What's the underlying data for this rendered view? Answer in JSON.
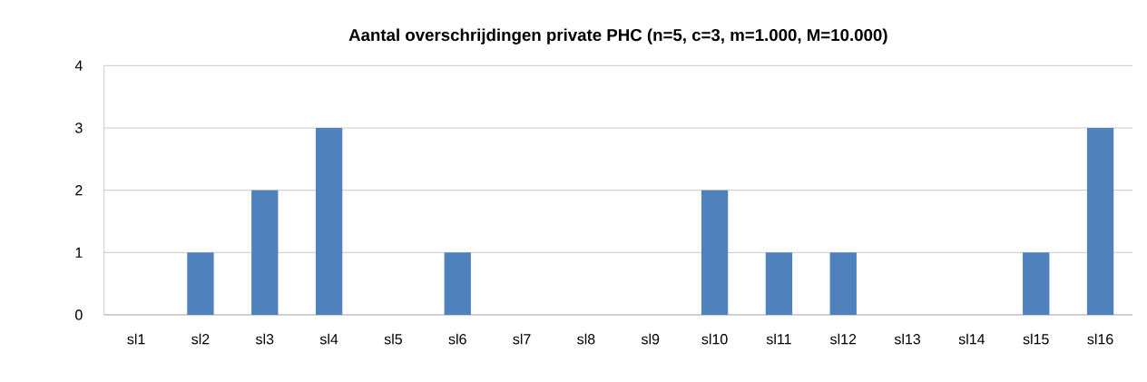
{
  "chart_data": {
    "type": "bar",
    "title": "Aantal overschrijdingen private PHC (n=5, c=3, m=1.000, M=10.000)",
    "categories": [
      "sl1",
      "sl2",
      "sl3",
      "sl4",
      "sl5",
      "sl6",
      "sl7",
      "sl8",
      "sl9",
      "sl10",
      "sl11",
      "sl12",
      "sl13",
      "sl14",
      "sl15",
      "sl16"
    ],
    "values": [
      0,
      1,
      2,
      3,
      0,
      1,
      0,
      0,
      0,
      2,
      1,
      1,
      0,
      0,
      1,
      3
    ],
    "color": "#4f81bd",
    "ylim": [
      0,
      4
    ],
    "yticks": [
      0,
      1,
      2,
      3,
      4
    ],
    "grid": "y"
  }
}
